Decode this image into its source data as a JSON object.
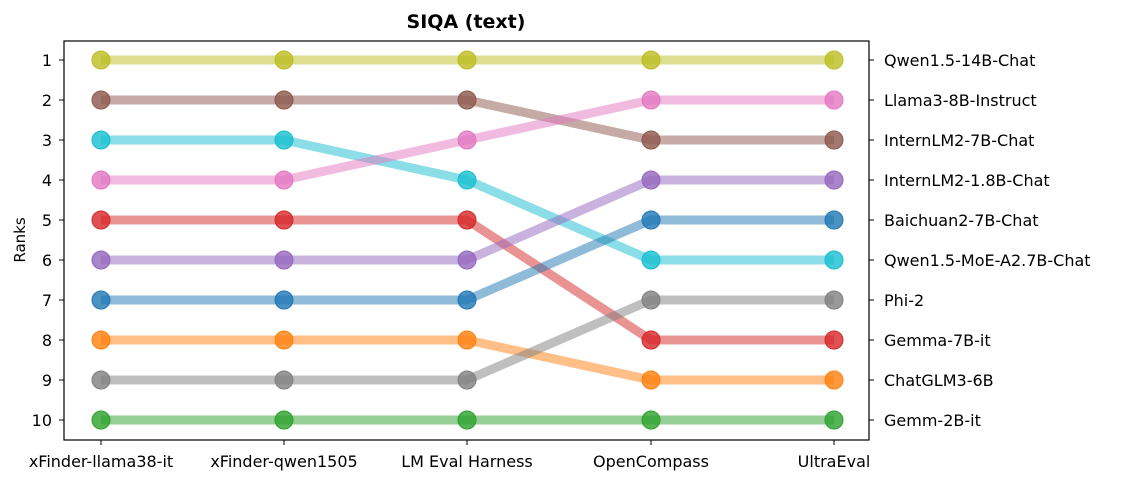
{
  "chart_data": {
    "type": "line",
    "title": "SIQA (text)",
    "ylabel": "Ranks",
    "xlabel": "",
    "categories": [
      "xFinder-llama38-it",
      "xFinder-qwen1505",
      "LM Eval Harness",
      "OpenCompass",
      "UltraEval"
    ],
    "ylim": [
      10,
      1
    ],
    "y_inverted": true,
    "y_ticks": [
      1,
      2,
      3,
      4,
      5,
      6,
      7,
      8,
      9,
      10
    ],
    "right_axis_labels": [
      "Qwen1.5-14B-Chat",
      "Llama3-8B-Instruct",
      "InternLM2-7B-Chat",
      "InternLM2-1.8B-Chat",
      "Baichuan2-7B-Chat",
      "Qwen1.5-MoE-A2.7B-Chat",
      "Phi-2",
      "Gemma-7B-it",
      "ChatGLM3-6B",
      "Gemm-2B-it"
    ],
    "series": [
      {
        "color": "#bcbd22",
        "values": [
          1,
          1,
          1,
          1,
          1
        ]
      },
      {
        "color": "#8c564b",
        "values": [
          2,
          2,
          2,
          3,
          3
        ]
      },
      {
        "color": "#17becf",
        "values": [
          3,
          3,
          4,
          6,
          6
        ]
      },
      {
        "color": "#e377c2",
        "values": [
          4,
          4,
          3,
          2,
          2
        ]
      },
      {
        "color": "#d62728",
        "values": [
          5,
          5,
          5,
          8,
          8
        ]
      },
      {
        "color": "#9467bd",
        "values": [
          6,
          6,
          6,
          4,
          4
        ]
      },
      {
        "color": "#1f77b4",
        "values": [
          7,
          7,
          7,
          5,
          5
        ]
      },
      {
        "color": "#ff7f0e",
        "values": [
          8,
          8,
          8,
          9,
          9
        ]
      },
      {
        "color": "#7f7f7f",
        "values": [
          9,
          9,
          9,
          7,
          7
        ]
      },
      {
        "color": "#2ca02c",
        "values": [
          10,
          10,
          10,
          10,
          10
        ]
      }
    ],
    "grid": false
  }
}
